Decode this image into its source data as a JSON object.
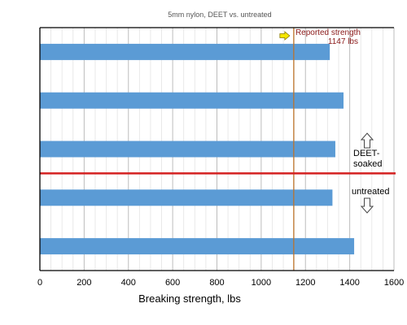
{
  "chart_data": {
    "type": "bar",
    "orientation": "horizontal",
    "title": "5mm nylon, DEET vs. untreated",
    "xlabel": "Breaking strength, lbs",
    "ylabel": "",
    "xlim": [
      0,
      1600
    ],
    "x_ticks": [
      0,
      200,
      400,
      600,
      800,
      1000,
      1200,
      1400,
      1600
    ],
    "grid": "vertical",
    "values": [
      1310,
      1372,
      1335,
      1322,
      1420
    ],
    "bar_color": "#5b9bd5",
    "reference_line": {
      "value": 1147,
      "label_line1": "Reported strength",
      "label_line2": "1147 lbs",
      "color": "#c07020",
      "label_color": "#8b1a1a",
      "marker_color": "#f5e600"
    },
    "divider": {
      "after_bar_index": 2,
      "color": "#d42020"
    },
    "groups": {
      "upper": {
        "label_line1": "DEET-",
        "label_line2": "soaked",
        "arrow": "up"
      },
      "lower": {
        "label": "untreated",
        "arrow": "down"
      }
    }
  }
}
